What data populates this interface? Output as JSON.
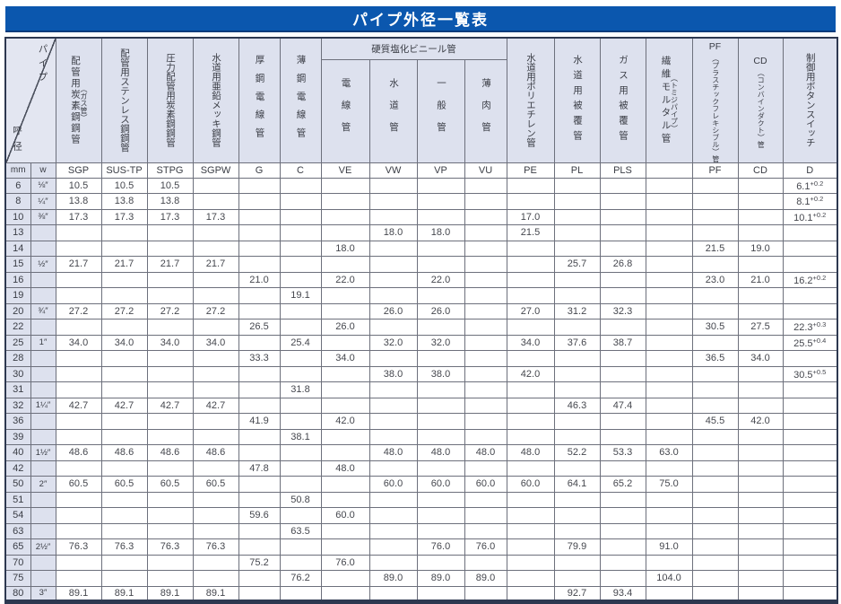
{
  "title": "パイプ外径一覧表",
  "colors": {
    "title_bg": "#0b57ae",
    "title_text": "#ffffff",
    "header_bg": "#dde1ee",
    "grid_line": "#6d707c",
    "outer_border": "#2d3850",
    "value_text": "#45474e"
  },
  "table": {
    "corner": {
      "top_right": "パイプ",
      "bottom_left": "呼径"
    },
    "unit_headers": [
      "mm",
      "w"
    ],
    "vinyl_group_label": "硬質塩化ビニール管",
    "columns": [
      {
        "code": "SGP",
        "label": "配管用炭素鋼鋼管",
        "paren": "（ガス管）"
      },
      {
        "code": "SUS-TP",
        "label": "配管用ステンレス鋼鋼管"
      },
      {
        "code": "STPG",
        "label": "圧力配管用炭素鋼鋼管"
      },
      {
        "code": "SGPW",
        "label": "水道用亜鉛メッキ鋼管"
      },
      {
        "code": "G",
        "label": "厚鋼電線管"
      },
      {
        "code": "C",
        "label": "薄鋼電線管"
      },
      {
        "code": "VE",
        "label": "電線管",
        "group": "vinyl"
      },
      {
        "code": "VW",
        "label": "水道管",
        "group": "vinyl"
      },
      {
        "code": "VP",
        "label": "一般管",
        "group": "vinyl"
      },
      {
        "code": "VU",
        "label": "薄肉管",
        "group": "vinyl"
      },
      {
        "code": "PE",
        "label": "水道用ポリエチレン管"
      },
      {
        "code": "PL",
        "label": "水道用被覆管"
      },
      {
        "code": "PLS",
        "label": "ガス用被覆管"
      },
      {
        "code": "",
        "label": "繊維モルタル管",
        "paren": "（トミジパイプ）",
        "paren_right": true
      },
      {
        "code": "PF",
        "label_top": "PF",
        "label": "（プラスチックフレキシブル）管"
      },
      {
        "code": "CD",
        "label_top": "CD",
        "label": "（コンバインダクト）管"
      },
      {
        "code": "D",
        "label": "制御用ボタンスイッチ"
      }
    ],
    "rows": [
      {
        "mm": "6",
        "w": "⅛″",
        "values": [
          "10.5",
          "10.5",
          "10.5",
          "",
          "",
          "",
          "",
          "",
          "",
          "",
          "",
          "",
          "",
          "",
          "",
          "",
          {
            "v": "6.1",
            "tol": "+0.2"
          }
        ]
      },
      {
        "mm": "8",
        "w": "¼″",
        "values": [
          "13.8",
          "13.8",
          "13.8",
          "",
          "",
          "",
          "",
          "",
          "",
          "",
          "",
          "",
          "",
          "",
          "",
          "",
          {
            "v": "8.1",
            "tol": "+0.2"
          }
        ]
      },
      {
        "mm": "10",
        "w": "⅜″",
        "values": [
          "17.3",
          "17.3",
          "17.3",
          "17.3",
          "",
          "",
          "",
          "",
          "",
          "",
          "17.0",
          "",
          "",
          "",
          "",
          "",
          {
            "v": "10.1",
            "tol": "+0.2"
          }
        ]
      },
      {
        "mm": "13",
        "w": "",
        "values": [
          "",
          "",
          "",
          "",
          "",
          "",
          "",
          "18.0",
          "18.0",
          "",
          "21.5",
          "",
          "",
          "",
          "",
          "",
          ""
        ]
      },
      {
        "mm": "14",
        "w": "",
        "values": [
          "",
          "",
          "",
          "",
          "",
          "",
          "18.0",
          "",
          "",
          "",
          "",
          "",
          "",
          "",
          "21.5",
          "19.0",
          ""
        ]
      },
      {
        "mm": "15",
        "w": "½″",
        "values": [
          "21.7",
          "21.7",
          "21.7",
          "21.7",
          "",
          "",
          "",
          "",
          "",
          "",
          "",
          "25.7",
          "26.8",
          "",
          "",
          "",
          ""
        ]
      },
      {
        "mm": "16",
        "w": "",
        "values": [
          "",
          "",
          "",
          "",
          "21.0",
          "",
          "22.0",
          "",
          "22.0",
          "",
          "",
          "",
          "",
          "",
          "23.0",
          "21.0",
          {
            "v": "16.2",
            "tol": "+0.2"
          }
        ]
      },
      {
        "mm": "19",
        "w": "",
        "values": [
          "",
          "",
          "",
          "",
          "",
          "19.1",
          "",
          "",
          "",
          "",
          "",
          "",
          "",
          "",
          "",
          "",
          ""
        ]
      },
      {
        "mm": "20",
        "w": "¾″",
        "values": [
          "27.2",
          "27.2",
          "27.2",
          "27.2",
          "",
          "",
          "",
          "26.0",
          "26.0",
          "",
          "27.0",
          "31.2",
          "32.3",
          "",
          "",
          "",
          ""
        ]
      },
      {
        "mm": "22",
        "w": "",
        "values": [
          "",
          "",
          "",
          "",
          "26.5",
          "",
          "26.0",
          "",
          "",
          "",
          "",
          "",
          "",
          "",
          "30.5",
          "27.5",
          {
            "v": "22.3",
            "tol": "+0.3"
          }
        ]
      },
      {
        "mm": "25",
        "w": "1″",
        "values": [
          "34.0",
          "34.0",
          "34.0",
          "34.0",
          "",
          "25.4",
          "",
          "32.0",
          "32.0",
          "",
          "34.0",
          "37.6",
          "38.7",
          "",
          "",
          "",
          {
            "v": "25.5",
            "tol": "+0.4"
          }
        ]
      },
      {
        "mm": "28",
        "w": "",
        "values": [
          "",
          "",
          "",
          "",
          "33.3",
          "",
          "34.0",
          "",
          "",
          "",
          "",
          "",
          "",
          "",
          "36.5",
          "34.0",
          ""
        ]
      },
      {
        "mm": "30",
        "w": "",
        "values": [
          "",
          "",
          "",
          "",
          "",
          "",
          "",
          "38.0",
          "38.0",
          "",
          "42.0",
          "",
          "",
          "",
          "",
          "",
          {
            "v": "30.5",
            "tol": "+0.5"
          }
        ]
      },
      {
        "mm": "31",
        "w": "",
        "values": [
          "",
          "",
          "",
          "",
          "",
          "31.8",
          "",
          "",
          "",
          "",
          "",
          "",
          "",
          "",
          "",
          "",
          ""
        ]
      },
      {
        "mm": "32",
        "w": "1¼″",
        "values": [
          "42.7",
          "42.7",
          "42.7",
          "42.7",
          "",
          "",
          "",
          "",
          "",
          "",
          "",
          "46.3",
          "47.4",
          "",
          "",
          "",
          ""
        ]
      },
      {
        "mm": "36",
        "w": "",
        "values": [
          "",
          "",
          "",
          "",
          "41.9",
          "",
          "42.0",
          "",
          "",
          "",
          "",
          "",
          "",
          "",
          "45.5",
          "42.0",
          ""
        ]
      },
      {
        "mm": "39",
        "w": "",
        "values": [
          "",
          "",
          "",
          "",
          "",
          "38.1",
          "",
          "",
          "",
          "",
          "",
          "",
          "",
          "",
          "",
          "",
          ""
        ]
      },
      {
        "mm": "40",
        "w": "1½″",
        "values": [
          "48.6",
          "48.6",
          "48.6",
          "48.6",
          "",
          "",
          "",
          "48.0",
          "48.0",
          "48.0",
          "48.0",
          "52.2",
          "53.3",
          "63.0",
          "",
          "",
          ""
        ]
      },
      {
        "mm": "42",
        "w": "",
        "values": [
          "",
          "",
          "",
          "",
          "47.8",
          "",
          "48.0",
          "",
          "",
          "",
          "",
          "",
          "",
          "",
          "",
          "",
          ""
        ]
      },
      {
        "mm": "50",
        "w": "2″",
        "values": [
          "60.5",
          "60.5",
          "60.5",
          "60.5",
          "",
          "",
          "",
          "60.0",
          "60.0",
          "60.0",
          "60.0",
          "64.1",
          "65.2",
          "75.0",
          "",
          "",
          ""
        ]
      },
      {
        "mm": "51",
        "w": "",
        "values": [
          "",
          "",
          "",
          "",
          "",
          "50.8",
          "",
          "",
          "",
          "",
          "",
          "",
          "",
          "",
          "",
          "",
          ""
        ]
      },
      {
        "mm": "54",
        "w": "",
        "values": [
          "",
          "",
          "",
          "",
          "59.6",
          "",
          "60.0",
          "",
          "",
          "",
          "",
          "",
          "",
          "",
          "",
          "",
          ""
        ]
      },
      {
        "mm": "63",
        "w": "",
        "values": [
          "",
          "",
          "",
          "",
          "",
          "63.5",
          "",
          "",
          "",
          "",
          "",
          "",
          "",
          "",
          "",
          "",
          ""
        ]
      },
      {
        "mm": "65",
        "w": "2½″",
        "values": [
          "76.3",
          "76.3",
          "76.3",
          "76.3",
          "",
          "",
          "",
          "",
          "76.0",
          "76.0",
          "",
          "79.9",
          "",
          "91.0",
          "",
          "",
          ""
        ]
      },
      {
        "mm": "70",
        "w": "",
        "values": [
          "",
          "",
          "",
          "",
          "75.2",
          "",
          "76.0",
          "",
          "",
          "",
          "",
          "",
          "",
          "",
          "",
          "",
          ""
        ]
      },
      {
        "mm": "75",
        "w": "",
        "values": [
          "",
          "",
          "",
          "",
          "",
          "76.2",
          "",
          "89.0",
          "89.0",
          "89.0",
          "",
          "",
          "",
          "104.0",
          "",
          "",
          ""
        ]
      },
      {
        "mm": "80",
        "w": "3″",
        "values": [
          "89.1",
          "89.1",
          "89.1",
          "89.1",
          "",
          "",
          "",
          "",
          "",
          "",
          "",
          "92.7",
          "93.4",
          "",
          "",
          "",
          ""
        ]
      }
    ]
  }
}
